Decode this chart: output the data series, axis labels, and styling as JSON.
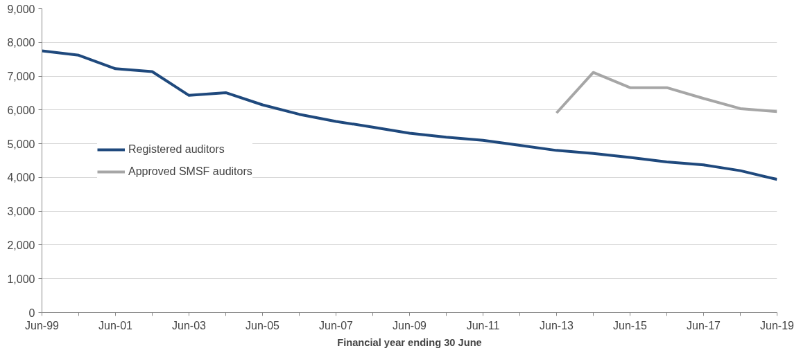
{
  "chart_data": {
    "type": "line",
    "xlabel": "Financial year ending 30 June",
    "categories": [
      "Jun-99",
      null,
      "Jun-01",
      null,
      "Jun-03",
      null,
      "Jun-05",
      null,
      "Jun-07",
      null,
      "Jun-09",
      null,
      "Jun-11",
      null,
      "Jun-13",
      null,
      "Jun-15",
      null,
      "Jun-17",
      null,
      "Jun-19"
    ],
    "series": [
      {
        "name": "Registered auditors",
        "color": "#1f497d",
        "values": [
          7750,
          7620,
          7220,
          7135,
          6430,
          6510,
          6150,
          5870,
          5660,
          5490,
          5310,
          5190,
          5100,
          4950,
          4800,
          4710,
          4590,
          4460,
          4370,
          4200,
          3940
        ]
      },
      {
        "name": "Approved SMSF auditors",
        "color": "#a6a6a6",
        "values": [
          null,
          null,
          null,
          null,
          null,
          null,
          null,
          null,
          null,
          null,
          null,
          null,
          null,
          null,
          5910,
          7110,
          6660,
          6660,
          6340,
          6040,
          5950
        ]
      }
    ],
    "ylim": [
      0,
      9000
    ],
    "yticks": [
      {
        "value": 0,
        "label": "0"
      },
      {
        "value": 1000,
        "label": "1,000"
      },
      {
        "value": 2000,
        "label": "2,000"
      },
      {
        "value": 3000,
        "label": "3,000"
      },
      {
        "value": 4000,
        "label": "4,000"
      },
      {
        "value": 5000,
        "label": "5,000"
      },
      {
        "value": 6000,
        "label": "6,000"
      },
      {
        "value": 7000,
        "label": "7,000"
      },
      {
        "value": 8000,
        "label": "8,000"
      },
      {
        "value": 9000,
        "label": "9,000"
      }
    ],
    "grid": "y",
    "legend": "left",
    "marker": "none",
    "line_style": "solid"
  }
}
